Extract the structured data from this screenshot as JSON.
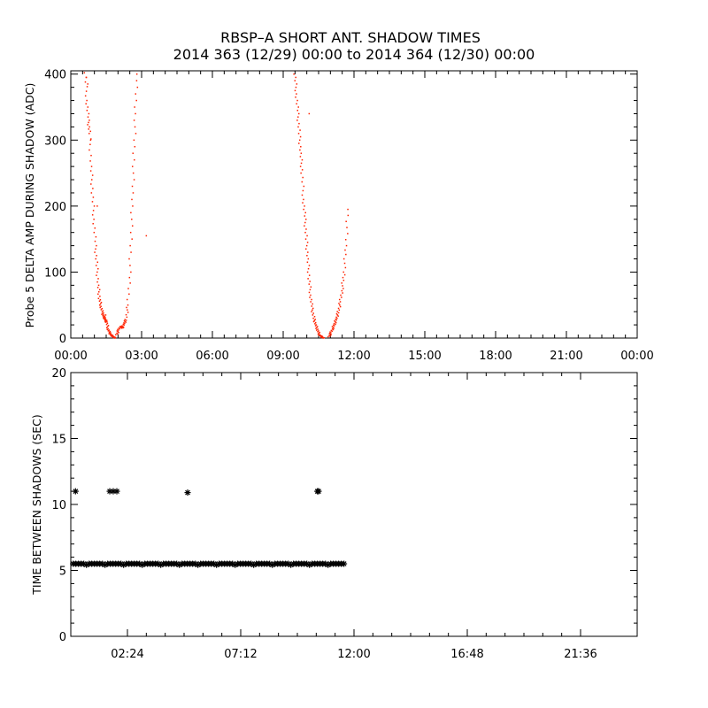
{
  "figure": {
    "title_line1": "RBSP–A SHORT ANT. SHADOW TIMES",
    "title_line2": "2014 363 (12/29) 00:00 to 2014 364 (12/30) 00:00"
  },
  "chart_data": [
    {
      "type": "scatter",
      "ylabel": "Probe 5 DELTA AMP DURING SHADOW (ADC)",
      "xlabel": "",
      "x_units": "hours since 2014-12-29 00:00",
      "xlim": [
        0,
        24
      ],
      "ylim": [
        0,
        405
      ],
      "xticks": [
        0,
        3,
        6,
        9,
        12,
        15,
        18,
        21,
        24
      ],
      "xtick_labels": [
        "00:00",
        "03:00",
        "06:00",
        "09:00",
        "12:00",
        "15:00",
        "18:00",
        "21:00",
        "00:00"
      ],
      "yticks": [
        0,
        100,
        200,
        300,
        400
      ],
      "ytick_labels": [
        "0",
        "100",
        "200",
        "300",
        "400"
      ],
      "marker_color": "#ff2200",
      "series": [
        {
          "segments": [
            {
              "x": [
                0.62,
                0.68,
                0.74,
                0.8,
                0.86,
                0.92,
                0.98,
                1.04,
                1.1,
                1.16,
                1.22,
                1.28,
                1.34,
                1.4,
                1.46,
                1.52,
                1.58,
                1.64,
                1.72,
                1.8,
                1.88
              ],
              "y": [
                402,
                360,
                330,
                310,
                260,
                220,
                180,
                140,
                110,
                80,
                60,
                48,
                38,
                32,
                28,
                24,
                14,
                8,
                4,
                2,
                0
              ]
            },
            {
              "x": [
                1.95,
                2.02,
                2.1,
                2.18,
                2.26,
                2.34,
                2.42,
                2.5,
                2.56,
                2.62,
                2.68,
                2.74,
                2.8
              ],
              "y": [
                5,
                12,
                18,
                15,
                22,
                28,
                50,
                100,
                160,
                220,
                280,
                340,
                400
              ]
            },
            {
              "x": [
                9.5,
                9.56,
                9.62,
                9.68,
                9.74,
                9.8,
                9.86,
                9.92,
                9.98,
                10.04,
                10.1,
                10.16,
                10.22,
                10.3,
                10.38,
                10.46,
                10.54,
                10.62,
                10.7
              ],
              "y": [
                400,
                370,
                340,
                310,
                280,
                250,
                210,
                180,
                150,
                120,
                90,
                65,
                45,
                30,
                20,
                12,
                5,
                2,
                0
              ]
            },
            {
              "x": [
                10.95,
                11.02,
                11.1,
                11.18,
                11.26,
                11.34,
                11.42,
                11.5,
                11.58,
                11.66,
                11.74
              ],
              "y": [
                2,
                8,
                15,
                22,
                30,
                40,
                55,
                75,
                100,
                140,
                195
              ]
            }
          ],
          "scattered": {
            "x": [
              0.66,
              0.72,
              0.84,
              1.12,
              1.48,
              3.2,
              10.1,
              10.3
            ],
            "y": [
              395,
              385,
              300,
              200,
              35,
              155,
              340,
              25
            ]
          }
        }
      ]
    },
    {
      "type": "scatter",
      "ylabel": "TIME BETWEEN SHADOWS (SEC)",
      "xlabel": "",
      "x_units": "hours since 2014-12-29 00:00",
      "xlim": [
        0,
        24
      ],
      "ylim": [
        0,
        20
      ],
      "xticks": [
        2.4,
        7.2,
        12.0,
        16.8,
        21.6
      ],
      "xtick_labels": [
        "02:24",
        "07:12",
        "12:00",
        "16:48",
        "21:36"
      ],
      "yticks": [
        0,
        5,
        10,
        15,
        20
      ],
      "ytick_labels": [
        "0",
        "5",
        "10",
        "15",
        "20"
      ],
      "marker": "asterisk",
      "marker_color": "#000000",
      "series": [
        {
          "band": {
            "x_start": 0.1,
            "x_end": 11.65,
            "y": 5.5
          },
          "outliers": {
            "x": [
              0.2,
              1.65,
              1.8,
              1.95,
              4.95,
              10.45,
              10.5
            ],
            "y": [
              11.0,
              11.0,
              11.0,
              11.0,
              10.9,
              11.0,
              11.0
            ]
          }
        }
      ]
    }
  ]
}
